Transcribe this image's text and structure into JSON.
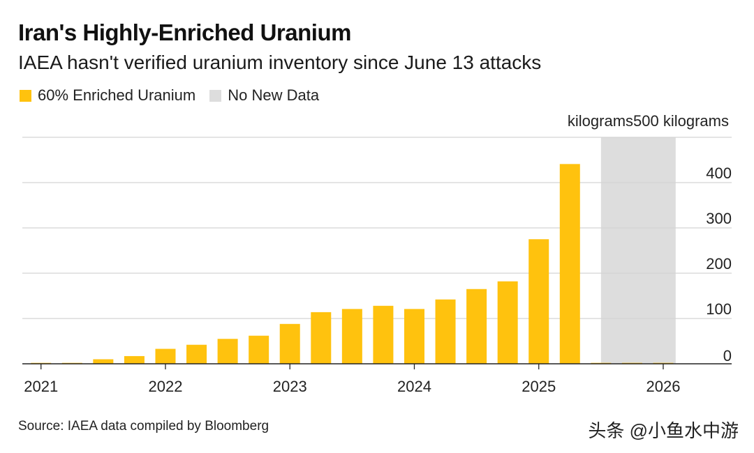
{
  "chart_data": {
    "type": "bar",
    "title": "Iran's Highly-Enriched Uranium",
    "subtitle": "IAEA hasn't verified uranium inventory since June 13 attacks",
    "legend": [
      {
        "label": "60% Enriched Uranium",
        "color": "#FFC20E"
      },
      {
        "label": "No New Data",
        "color": "#DDDDDD"
      }
    ],
    "unit_label": "kilograms500 kilograms",
    "ylabel": "kilograms",
    "ylim": [
      0,
      500
    ],
    "y_ticks": [
      {
        "value": 0,
        "label": "0"
      },
      {
        "value": 100,
        "label": "100"
      },
      {
        "value": 200,
        "label": "200"
      },
      {
        "value": 300,
        "label": "300"
      },
      {
        "value": 400,
        "label": "400"
      }
    ],
    "x_ticks": [
      {
        "value": 2021.0,
        "label": "2021"
      },
      {
        "value": 2022.0,
        "label": "2022"
      },
      {
        "value": 2023.0,
        "label": "2023"
      },
      {
        "value": 2024.0,
        "label": "2024"
      },
      {
        "value": 2025.0,
        "label": "2025"
      },
      {
        "value": 2026.0,
        "label": "2026"
      }
    ],
    "xlim": [
      2020.85,
      2026.55
    ],
    "no_data_range": [
      2025.5,
      2026.1
    ],
    "series": [
      {
        "name": "60% Enriched Uranium",
        "color": "#FFC20E",
        "x": [
          2021.0,
          2021.25,
          2021.5,
          2021.75,
          2022.0,
          2022.25,
          2022.5,
          2022.75,
          2023.0,
          2023.25,
          2023.5,
          2023.75,
          2024.0,
          2024.25,
          2024.5,
          2024.75,
          2025.0,
          2025.25,
          2025.5,
          2025.75,
          2026.0
        ],
        "values": [
          2,
          2,
          10,
          17,
          33,
          42,
          55,
          62,
          88,
          114,
          121,
          128,
          121,
          142,
          165,
          182,
          275,
          441,
          2,
          2,
          2
        ]
      }
    ]
  },
  "footer": {
    "source": "Source: IAEA data compiled by Bloomberg",
    "watermark": "头条 @小鱼水中游"
  }
}
